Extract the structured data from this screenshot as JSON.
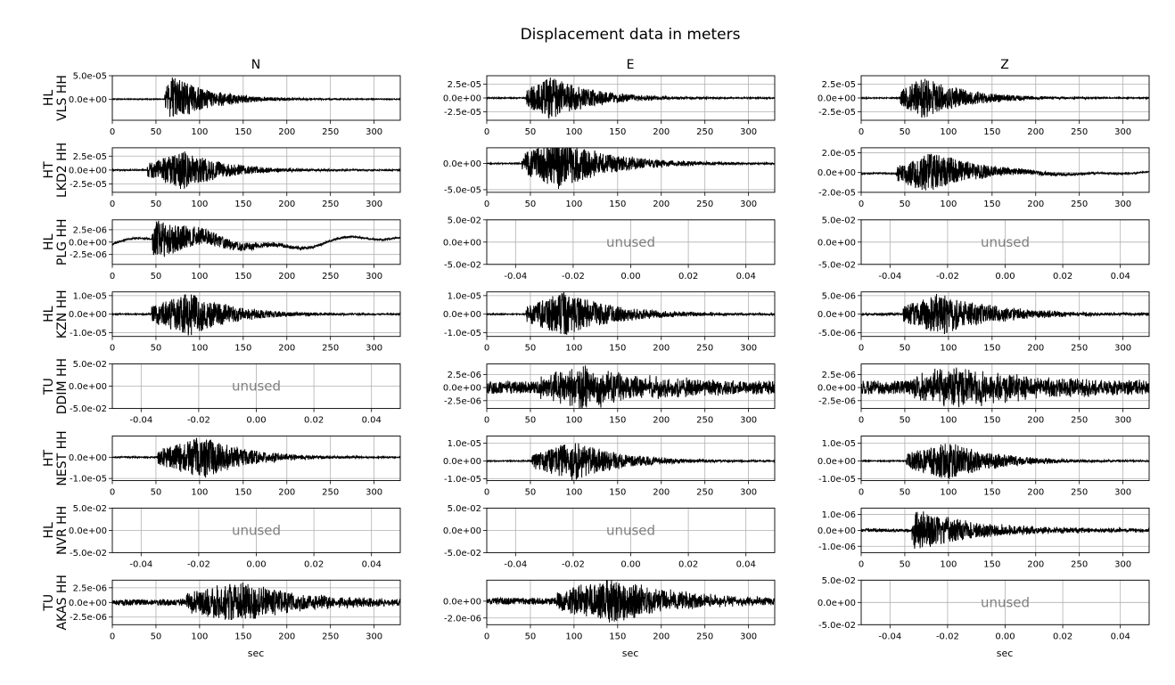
{
  "figure": {
    "title": "Displacement data in meters",
    "columns": [
      "N",
      "E",
      "Z"
    ],
    "xlabel": "sec",
    "unused_label": "unused"
  },
  "chart_data": {
    "type": "line",
    "grid": true,
    "line_color": "#000000",
    "grid_color": "#b0b0b0",
    "unused_text_color": "#808080",
    "time_range": [
      0,
      330
    ],
    "time_ticks": [
      0,
      50,
      100,
      150,
      200,
      250,
      300
    ],
    "unused_ticks": [
      "-0.04",
      "-0.02",
      "0.00",
      "0.02",
      "0.04"
    ],
    "unused_yticks": [
      "5.0e-02",
      "0.0e+00",
      "-5.0e-02"
    ],
    "rows": [
      {
        "network": "HL",
        "station": "VLS HH",
        "panels": [
          {
            "component": "N",
            "used": true,
            "ylim": [
              -4.5e-05,
              5e-05
            ],
            "yticks": [
              5e-05,
              0
            ],
            "yticklabels": [
              "5.0e-05",
              "0.0e+00"
            ],
            "onset": 60,
            "peak_t": 68,
            "peak": 5e-05,
            "noise": 1e-06,
            "coda": 45,
            "seed": 11,
            "drift": 0
          },
          {
            "component": "E",
            "used": true,
            "ylim": [
              -4e-05,
              4e-05
            ],
            "yticks": [
              2.5e-05,
              0,
              -2.5e-05
            ],
            "yticklabels": [
              "2.5e-05",
              "0.0e+00",
              "-2.5e-05"
            ],
            "onset": 45,
            "peak_t": 72,
            "peak": 4e-05,
            "noise": 1e-06,
            "coda": 50,
            "seed": 12,
            "drift": 0
          },
          {
            "component": "Z",
            "used": true,
            "ylim": [
              -4e-05,
              4e-05
            ],
            "yticks": [
              2.5e-05,
              0,
              -2.5e-05
            ],
            "yticklabels": [
              "2.5e-05",
              "0.0e+00",
              "-2.5e-05"
            ],
            "onset": 45,
            "peak_t": 72,
            "peak": 3.8e-05,
            "noise": 1e-06,
            "coda": 50,
            "seed": 13,
            "drift": 0
          }
        ]
      },
      {
        "network": "HT",
        "station": "LKD2 HH",
        "panels": [
          {
            "component": "N",
            "used": true,
            "ylim": [
              -4e-05,
              4e-05
            ],
            "yticks": [
              2.5e-05,
              0,
              -2.5e-05
            ],
            "yticklabels": [
              "2.5e-05",
              "0.0e+00",
              "-2.5e-05"
            ],
            "onset": 40,
            "peak_t": 80,
            "peak": 3.5e-05,
            "noise": 1e-06,
            "coda": 50,
            "seed": 21,
            "drift": 0
          },
          {
            "component": "E",
            "used": true,
            "ylim": [
              -5.5e-05,
              3e-05
            ],
            "yticks": [
              0,
              -5e-05
            ],
            "yticklabels": [
              "0.0e+00",
              "-5.0e-05"
            ],
            "onset": 40,
            "peak_t": 82,
            "peak": 5e-05,
            "noise": 1e-06,
            "coda": 60,
            "seed": 22,
            "drift": 0
          },
          {
            "component": "Z",
            "used": true,
            "ylim": [
              -2e-05,
              2.5e-05
            ],
            "yticks": [
              2e-05,
              0,
              -2e-05
            ],
            "yticklabels": [
              "2.0e-05",
              "0.0e+00",
              "-2.0e-05"
            ],
            "onset": 40,
            "peak_t": 80,
            "peak": 2e-05,
            "noise": 5e-07,
            "coda": 55,
            "seed": 23,
            "drift": 2e-06
          }
        ]
      },
      {
        "network": "HL",
        "station": "PLG HH",
        "panels": [
          {
            "component": "N",
            "used": true,
            "ylim": [
              -4.5e-06,
              4.5e-06
            ],
            "yticks": [
              2.5e-06,
              0,
              -2.5e-06
            ],
            "yticklabels": [
              "2.5e-06",
              "0.0e+00",
              "-2.5e-06"
            ],
            "onset": 45,
            "peak_t": 48,
            "peak": 4.2e-06,
            "noise": 1.5e-07,
            "coda": 60,
            "seed": 31,
            "drift": 1.3e-06
          },
          {
            "component": "E",
            "used": false
          },
          {
            "component": "Z",
            "used": false
          }
        ]
      },
      {
        "network": "HL",
        "station": "KZN HH",
        "panels": [
          {
            "component": "N",
            "used": true,
            "ylim": [
              -1.2e-05,
              1.2e-05
            ],
            "yticks": [
              1e-05,
              0,
              -1e-05
            ],
            "yticklabels": [
              "1.0e-05",
              "0.0e+00",
              "-1.0e-05"
            ],
            "onset": 45,
            "peak_t": 88,
            "peak": 1.2e-05,
            "noise": 3e-07,
            "coda": 50,
            "seed": 41,
            "drift": 0
          },
          {
            "component": "E",
            "used": true,
            "ylim": [
              -1.2e-05,
              1.2e-05
            ],
            "yticks": [
              1e-05,
              0,
              -1e-05
            ],
            "yticklabels": [
              "1.0e-05",
              "0.0e+00",
              "-1.0e-05"
            ],
            "onset": 45,
            "peak_t": 88,
            "peak": 1.2e-05,
            "noise": 3e-07,
            "coda": 60,
            "seed": 42,
            "drift": 0
          },
          {
            "component": "Z",
            "used": true,
            "ylim": [
              -6e-06,
              6e-06
            ],
            "yticks": [
              5e-06,
              0,
              -5e-06
            ],
            "yticklabels": [
              "5.0e-06",
              "0.0e+00",
              "-5.0e-06"
            ],
            "onset": 48,
            "peak_t": 92,
            "peak": 5.8e-06,
            "noise": 3e-07,
            "coda": 60,
            "seed": 43,
            "drift": 0
          }
        ]
      },
      {
        "network": "TU",
        "station": "DDIM HH",
        "panels": [
          {
            "component": "N",
            "used": false
          },
          {
            "component": "E",
            "used": true,
            "ylim": [
              -4e-06,
              4.5e-06
            ],
            "yticks": [
              2.5e-06,
              0,
              -2.5e-06
            ],
            "yticklabels": [
              "2.5e-06",
              "0.0e+00",
              "-2.5e-06"
            ],
            "onset": 60,
            "peak_t": 110,
            "peak": 3.5e-06,
            "noise": 1.2e-06,
            "coda": 80,
            "seed": 51,
            "drift": 0
          },
          {
            "component": "Z",
            "used": true,
            "ylim": [
              -4e-06,
              4.5e-06
            ],
            "yticks": [
              2.5e-06,
              0,
              -2.5e-06
            ],
            "yticklabels": [
              "2.5e-06",
              "0.0e+00",
              "-2.5e-06"
            ],
            "onset": 60,
            "peak_t": 110,
            "peak": 3.5e-06,
            "noise": 1.3e-06,
            "coda": 80,
            "seed": 52,
            "drift": 0
          }
        ]
      },
      {
        "network": "HT",
        "station": "NEST HH",
        "panels": [
          {
            "component": "N",
            "used": true,
            "ylim": [
              -1.1e-05,
              1e-05
            ],
            "yticks": [
              0,
              -1e-05
            ],
            "yticklabels": [
              "0.0e+00",
              "-1.0e-05"
            ],
            "onset": 52,
            "peak_t": 105,
            "peak": 1e-05,
            "noise": 3e-07,
            "coda": 50,
            "seed": 61,
            "drift": 0
          },
          {
            "component": "E",
            "used": true,
            "ylim": [
              -1.1e-05,
              1.4e-05
            ],
            "yticks": [
              1e-05,
              0,
              -1e-05
            ],
            "yticklabels": [
              "1.0e-05",
              "0.0e+00",
              "-1.0e-05"
            ],
            "onset": 52,
            "peak_t": 100,
            "peak": 1.1e-05,
            "noise": 3e-07,
            "coda": 55,
            "seed": 62,
            "drift": 0
          },
          {
            "component": "Z",
            "used": true,
            "ylim": [
              -1.1e-05,
              1.4e-05
            ],
            "yticks": [
              1e-05,
              0,
              -1e-05
            ],
            "yticklabels": [
              "1.0e-05",
              "0.0e+00",
              "-1.0e-05"
            ],
            "onset": 52,
            "peak_t": 100,
            "peak": 1.1e-05,
            "noise": 3e-07,
            "coda": 55,
            "seed": 63,
            "drift": 0
          }
        ]
      },
      {
        "network": "HL",
        "station": "NVR HH",
        "panels": [
          {
            "component": "N",
            "used": false
          },
          {
            "component": "E",
            "used": false
          },
          {
            "component": "Z",
            "used": true,
            "ylim": [
              -1.4e-06,
              1.4e-06
            ],
            "yticks": [
              1e-06,
              0,
              -1e-06
            ],
            "yticklabels": [
              "1.0e-06",
              "0.0e+00",
              "-1.0e-06"
            ],
            "onset": 58,
            "peak_t": 62,
            "peak": 1.3e-06,
            "noise": 1e-07,
            "coda": 70,
            "seed": 71,
            "drift": 0
          }
        ]
      },
      {
        "network": "TU",
        "station": "AKAS HH",
        "panels": [
          {
            "component": "N",
            "used": true,
            "ylim": [
              -3.8e-06,
              3.8e-06
            ],
            "yticks": [
              2.5e-06,
              0,
              -2.5e-06
            ],
            "yticklabels": [
              "2.5e-06",
              "0.0e+00",
              "-2.5e-06"
            ],
            "onset": 85,
            "peak_t": 145,
            "peak": 3.5e-06,
            "noise": 5e-07,
            "coda": 70,
            "seed": 81,
            "drift": 0
          },
          {
            "component": "E",
            "used": true,
            "ylim": [
              -2.8e-06,
              2.5e-06
            ],
            "yticks": [
              0,
              -2e-06
            ],
            "yticklabels": [
              "0.0e+00",
              "-2.0e-06"
            ],
            "onset": 80,
            "peak_t": 145,
            "peak": 2.6e-06,
            "noise": 4e-07,
            "coda": 70,
            "seed": 82,
            "drift": 0
          },
          {
            "component": "Z",
            "used": false
          }
        ]
      }
    ]
  }
}
